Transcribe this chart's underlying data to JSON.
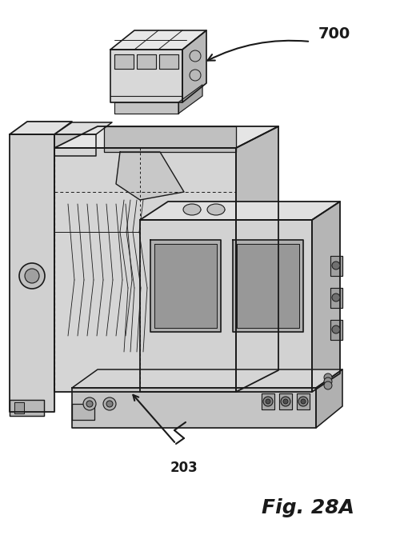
{
  "title": "Fig. 28A",
  "label_700": "700",
  "label_203": "203",
  "bg_color": "#ffffff",
  "line_color": "#1a1a1a",
  "fig_width": 5.2,
  "fig_height": 6.74,
  "dpi": 100
}
